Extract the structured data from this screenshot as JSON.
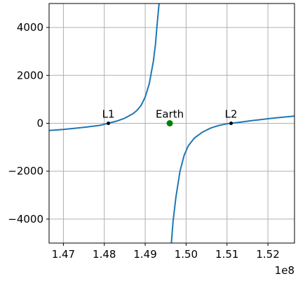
{
  "chart_data": {
    "type": "line",
    "title": "",
    "xlabel": "",
    "ylabel": "",
    "x_offset_label": "1e8",
    "xlim": [
      146650000,
      152650000
    ],
    "ylim": [
      -5000,
      5000
    ],
    "grid": true,
    "x_ticks": [
      {
        "value": 147000000,
        "label": "1.47"
      },
      {
        "value": 148000000,
        "label": "1.48"
      },
      {
        "value": 149000000,
        "label": "1.49"
      },
      {
        "value": 150000000,
        "label": "1.50"
      },
      {
        "value": 151000000,
        "label": "1.51"
      },
      {
        "value": 152000000,
        "label": "1.52"
      }
    ],
    "y_ticks": [
      {
        "value": -4000,
        "label": "−4000"
      },
      {
        "value": -2000,
        "label": "−2000"
      },
      {
        "value": 0,
        "label": "0"
      },
      {
        "value": 2000,
        "label": "2000"
      },
      {
        "value": 4000,
        "label": "4000"
      }
    ],
    "series": [
      {
        "color": "#1f77b4",
        "segments": [
          [
            [
              146650000,
              -300
            ],
            [
              147000000,
              -255
            ],
            [
              147300000,
              -205
            ],
            [
              147600000,
              -150
            ],
            [
              147900000,
              -85
            ],
            [
              148100000,
              0
            ],
            [
              148300000,
              90
            ],
            [
              148500000,
              210
            ],
            [
              148700000,
              400
            ],
            [
              148800000,
              540
            ],
            [
              148900000,
              750
            ],
            [
              149000000,
              1100
            ],
            [
              149100000,
              1650
            ],
            [
              149200000,
              2600
            ],
            [
              149250000,
              3300
            ],
            [
              149300000,
              4300
            ],
            [
              149340000,
              5000
            ]
          ],
          [
            [
              149640000,
              -5000
            ],
            [
              149680000,
              -4100
            ],
            [
              149750000,
              -3100
            ],
            [
              149850000,
              -2000
            ],
            [
              149950000,
              -1350
            ],
            [
              150050000,
              -950
            ],
            [
              150200000,
              -620
            ],
            [
              150400000,
              -370
            ],
            [
              150600000,
              -200
            ],
            [
              150800000,
              -90
            ],
            [
              151000000,
              -20
            ],
            [
              151100000,
              0
            ],
            [
              151300000,
              40
            ],
            [
              151600000,
              110
            ],
            [
              151900000,
              170
            ],
            [
              152200000,
              230
            ],
            [
              152650000,
              300
            ]
          ]
        ]
      }
    ],
    "points": [
      {
        "name": "L1",
        "x": 148100000,
        "y": 0,
        "color": "#000000",
        "size": "small"
      },
      {
        "name": "Earth",
        "x": 149600000,
        "y": 0,
        "color": "#008000",
        "size": "large"
      },
      {
        "name": "L2",
        "x": 151100000,
        "y": 0,
        "color": "#000000",
        "size": "small"
      }
    ]
  }
}
